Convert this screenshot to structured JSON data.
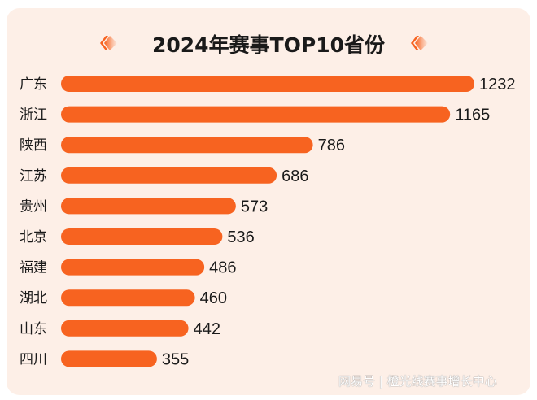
{
  "chart_data": {
    "type": "bar",
    "orientation": "horizontal",
    "title": "2024年赛事TOP10省份",
    "categories": [
      "广东",
      "浙江",
      "陕西",
      "江苏",
      "贵州",
      "北京",
      "福建",
      "湖北",
      "山东",
      "四川"
    ],
    "values": [
      1232,
      1165,
      786,
      686,
      573,
      536,
      486,
      460,
      442,
      355
    ],
    "data_labels": [
      "1232",
      "1165",
      "786",
      "686",
      "573",
      "536",
      "486",
      "460",
      "442",
      "355"
    ],
    "bar_color": "#f76320",
    "background_color": "#fdefe7",
    "grid": false,
    "legend": "none"
  },
  "watermark": "网易号 | 橙光线赛事增长中心"
}
